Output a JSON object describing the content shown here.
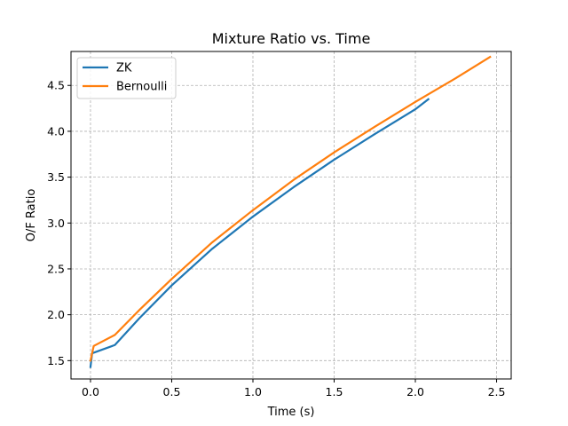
{
  "chart_data": {
    "type": "line",
    "title": "Mixture Ratio vs. Time",
    "xlabel": "Time (s)",
    "ylabel": "O/F Ratio",
    "xlim": [
      -0.12,
      2.59
    ],
    "ylim": [
      1.3,
      4.87
    ],
    "xticks": [
      0.0,
      0.5,
      1.0,
      1.5,
      2.0,
      2.5
    ],
    "xtick_labels": [
      "0.0",
      "0.5",
      "1.0",
      "1.5",
      "2.0",
      "2.5"
    ],
    "yticks": [
      1.5,
      2.0,
      2.5,
      3.0,
      3.5,
      4.0,
      4.5
    ],
    "ytick_labels": [
      "1.5",
      "2.0",
      "2.5",
      "3.0",
      "3.5",
      "4.0",
      "4.5"
    ],
    "grid": true,
    "legend_position": "top-left",
    "series": [
      {
        "name": "ZK",
        "color": "#1f77b4",
        "x": [
          0.0,
          0.01,
          0.15,
          0.3,
          0.5,
          0.75,
          1.0,
          1.25,
          1.5,
          1.75,
          2.0,
          2.08
        ],
        "y": [
          1.43,
          1.58,
          1.67,
          1.96,
          2.32,
          2.72,
          3.07,
          3.39,
          3.69,
          3.97,
          4.24,
          4.35
        ]
      },
      {
        "name": "Bernoulli",
        "color": "#ff7f0e",
        "x": [
          0.0,
          0.02,
          0.15,
          0.3,
          0.5,
          0.75,
          1.0,
          1.25,
          1.5,
          1.75,
          2.0,
          2.25,
          2.46
        ],
        "y": [
          1.5,
          1.66,
          1.78,
          2.05,
          2.39,
          2.79,
          3.14,
          3.47,
          3.77,
          4.05,
          4.32,
          4.58,
          4.81
        ]
      }
    ]
  }
}
